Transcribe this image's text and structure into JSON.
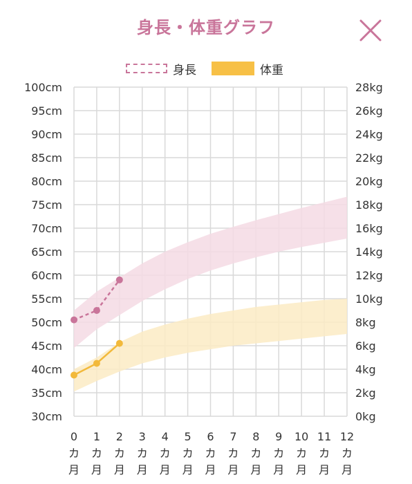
{
  "header": {
    "title": "身長・体重グラフ",
    "close_icon": "close-icon"
  },
  "colors": {
    "height": "#c9759a",
    "height_band": "#f4dbe4",
    "weight": "#f2b93b",
    "weight_band": "#fcebc4",
    "grid": "#d9d9d9"
  },
  "chart_data": {
    "type": "line",
    "legend_placement": "top-center",
    "x": [
      0,
      1,
      2,
      3,
      4,
      5,
      6,
      7,
      8,
      9,
      10,
      11,
      12
    ],
    "xtick_labels": [
      [
        "0",
        "カ",
        "月"
      ],
      [
        "1",
        "カ",
        "月"
      ],
      [
        "2",
        "カ",
        "月"
      ],
      [
        "3",
        "カ",
        "月"
      ],
      [
        "4",
        "カ",
        "月"
      ],
      [
        "5",
        "カ",
        "月"
      ],
      [
        "6",
        "カ",
        "月"
      ],
      [
        "7",
        "カ",
        "月"
      ],
      [
        "8",
        "カ",
        "月"
      ],
      [
        "9",
        "カ",
        "月"
      ],
      [
        "10",
        "カ",
        "月"
      ],
      [
        "11",
        "カ",
        "月"
      ],
      [
        "12",
        "カ",
        "月"
      ]
    ],
    "y_left": {
      "ticks": [
        100,
        95,
        90,
        85,
        80,
        75,
        70,
        65,
        60,
        55,
        50,
        45,
        40,
        35,
        30
      ],
      "labels": [
        "100cm",
        "95cm",
        "90cm",
        "85cm",
        "80cm",
        "75cm",
        "70cm",
        "65cm",
        "60cm",
        "55cm",
        "50cm",
        "45cm",
        "40cm",
        "35cm",
        "30cm"
      ],
      "ylim": [
        30,
        100
      ]
    },
    "y_right": {
      "ticks": [
        28,
        26,
        24,
        22,
        20,
        18,
        16,
        14,
        12,
        10,
        8,
        6,
        4,
        2,
        0
      ],
      "labels": [
        "28kg",
        "26kg",
        "24kg",
        "22kg",
        "20kg",
        "18kg",
        "16kg",
        "14kg",
        "12kg",
        "10kg",
        "8kg",
        "6kg",
        "4kg",
        "2kg",
        "0kg"
      ],
      "ylim": [
        0,
        28
      ]
    },
    "grid": true,
    "series": [
      {
        "name": "身長",
        "axis": "left",
        "style": "dashed",
        "x": [
          0,
          1,
          2
        ],
        "values": [
          50.5,
          52.5,
          59
        ]
      },
      {
        "name": "体重",
        "axis": "right",
        "style": "solid",
        "x": [
          0,
          1,
          2
        ],
        "values": [
          3.5,
          4.5,
          6.2
        ]
      }
    ],
    "bands": [
      {
        "series": "身長",
        "x": [
          0,
          1,
          2,
          3,
          4,
          5,
          6,
          7,
          8,
          9,
          10,
          11,
          12
        ],
        "upper": [
          52.5,
          56.5,
          59.5,
          62.5,
          65,
          67,
          68.8,
          70.3,
          71.7,
          73,
          74.3,
          75.5,
          76.7
        ],
        "lower": [
          44.5,
          48.5,
          51.5,
          54.5,
          57,
          59.2,
          61,
          62.5,
          63.8,
          65,
          66,
          66.9,
          67.8
        ]
      },
      {
        "series": "体重",
        "x": [
          0,
          1,
          2,
          3,
          4,
          5,
          6,
          7,
          8,
          9,
          10,
          11,
          12
        ],
        "upper": [
          4.0,
          5.0,
          6.3,
          7.2,
          7.8,
          8.3,
          8.7,
          9.0,
          9.3,
          9.5,
          9.7,
          9.9,
          10.0
        ],
        "lower": [
          2.1,
          3.0,
          3.8,
          4.5,
          5.0,
          5.4,
          5.7,
          6.0,
          6.2,
          6.4,
          6.6,
          6.8,
          7.0
        ]
      }
    ]
  }
}
